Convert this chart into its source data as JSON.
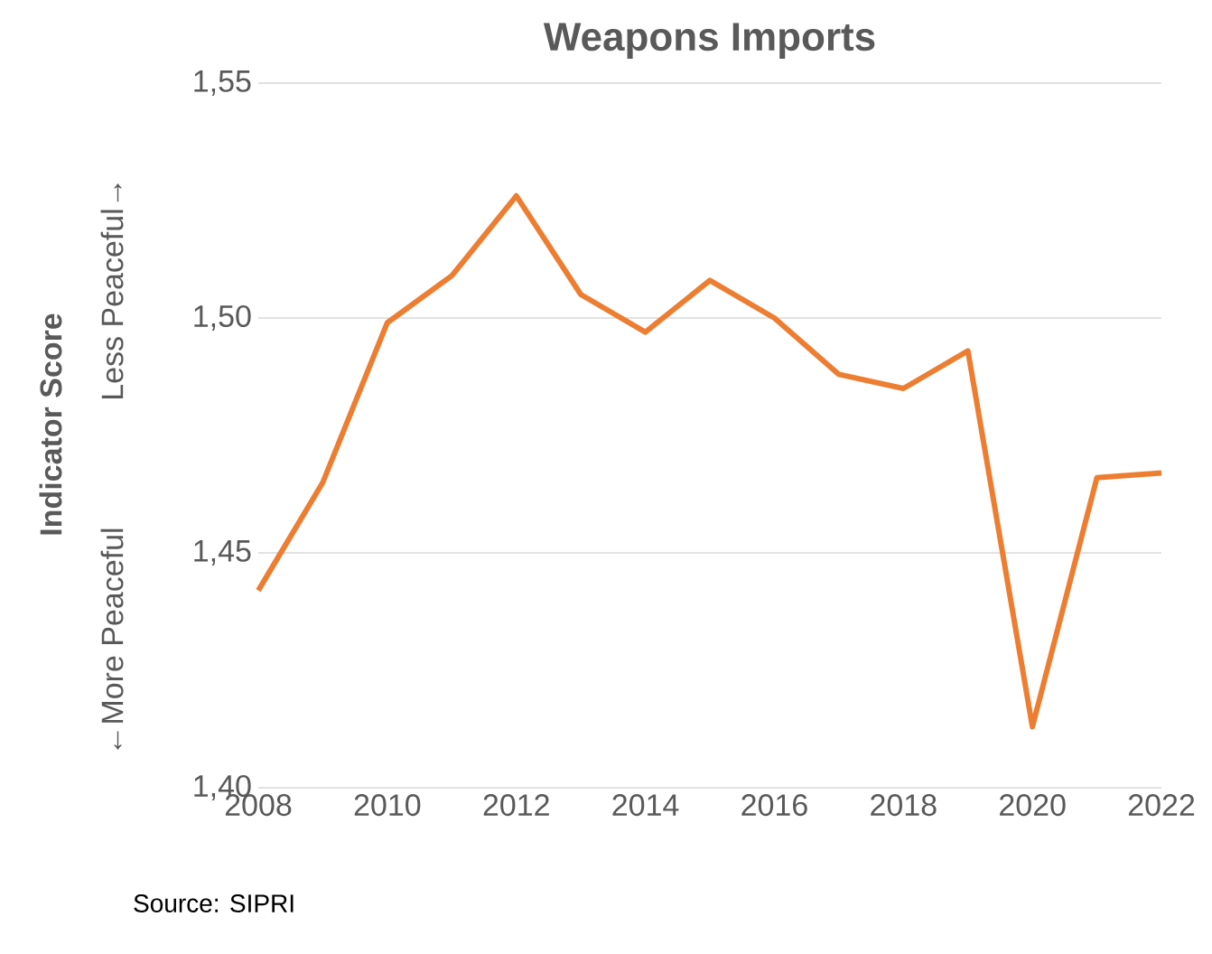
{
  "chart_data": {
    "type": "line",
    "title": "Weapons Imports",
    "ylabel": "Indicator Score",
    "x": [
      2008,
      2009,
      2010,
      2011,
      2012,
      2013,
      2014,
      2015,
      2016,
      2017,
      2018,
      2019,
      2020,
      2021,
      2022
    ],
    "series": [
      {
        "color": "#ed7d31",
        "values": [
          1.442,
          1.465,
          1.499,
          1.509,
          1.526,
          1.505,
          1.497,
          1.508,
          1.5,
          1.488,
          1.485,
          1.493,
          1.413,
          1.466,
          1.467
        ]
      }
    ],
    "xlim": [
      2008,
      2022
    ],
    "xticks": [
      2008,
      2010,
      2012,
      2014,
      2016,
      2018,
      2020,
      2022
    ],
    "ylim": [
      1.4,
      1.55
    ],
    "yticks": [
      {
        "value": 1.4,
        "label": "1,40"
      },
      {
        "value": 1.45,
        "label": "1,45"
      },
      {
        "value": 1.5,
        "label": "1,50"
      },
      {
        "value": 1.55,
        "label": "1,55"
      }
    ],
    "grid": "y",
    "annotations": [
      "←More Peaceful",
      "Less Peaceful→",
      "Source: SIPRI"
    ]
  }
}
